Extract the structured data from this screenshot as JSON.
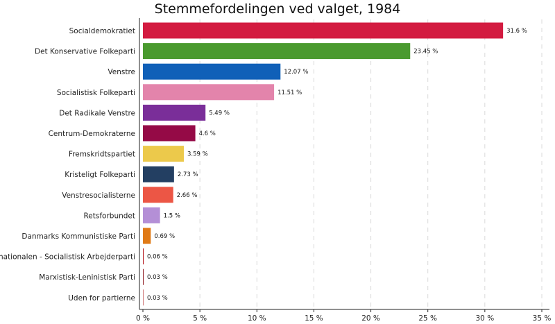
{
  "chart_data": {
    "type": "bar",
    "orientation": "horizontal",
    "title": "Stemmefordelingen ved valget, 1984",
    "xlabel": "",
    "ylabel": "",
    "xlim": [
      0,
      35
    ],
    "grid": "vertical dashed",
    "legend": "none",
    "x_ticks": [
      "0 %",
      "5 %",
      "10 %",
      "15 %",
      "20 %",
      "25 %",
      "30 %",
      "35 %"
    ],
    "x_tick_values": [
      0,
      5,
      10,
      15,
      20,
      25,
      30,
      35
    ],
    "categories": [
      "Socialdemokratiet",
      "Det Konservative Folkeparti",
      "Venstre",
      "Socialistisk Folkeparti",
      "Det Radikale Venstre",
      "Centrum-Demokraterne",
      "Fremskridtspartiet",
      "Kristeligt Folkeparti",
      "Venstresocialisterne",
      "Retsforbundet",
      "Danmarks Kommunistiske Parti",
      "Internationalen - Socialistisk Arbejderparti",
      "Marxistisk-Leninistisk Parti",
      "Uden for partierne"
    ],
    "values": [
      31.6,
      23.45,
      12.07,
      11.51,
      5.49,
      4.6,
      3.59,
      2.73,
      2.66,
      1.5,
      0.69,
      0.06,
      0.03,
      0.03
    ],
    "value_labels": [
      "31.6 %",
      "23.45 %",
      "12.07 %",
      "11.51 %",
      "5.49 %",
      "4.6 %",
      "3.59 %",
      "2.73 %",
      "2.66 %",
      "1.5 %",
      "0.69 %",
      "0.06 %",
      "0.03 %",
      "0.03 %"
    ],
    "colors": [
      "#d31b40",
      "#4a9a2f",
      "#1060b8",
      "#e384ab",
      "#7a2e99",
      "#950a46",
      "#ecc94b",
      "#233f62",
      "#ec5645",
      "#b48fd6",
      "#e07a17",
      "#b31218",
      "#8f1c22",
      "#d07a7a"
    ]
  }
}
